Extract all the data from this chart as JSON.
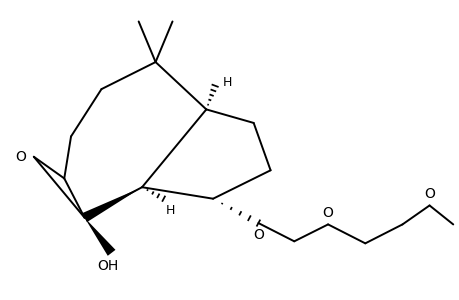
{
  "bg_color": "#ffffff",
  "lc": "#000000",
  "lw": 1.4,
  "fig_w": 4.6,
  "fig_h": 3.0,
  "dpi": 100,
  "xlim": [
    -2.6,
    4.2
  ],
  "ylim": [
    -2.0,
    2.0
  ]
}
